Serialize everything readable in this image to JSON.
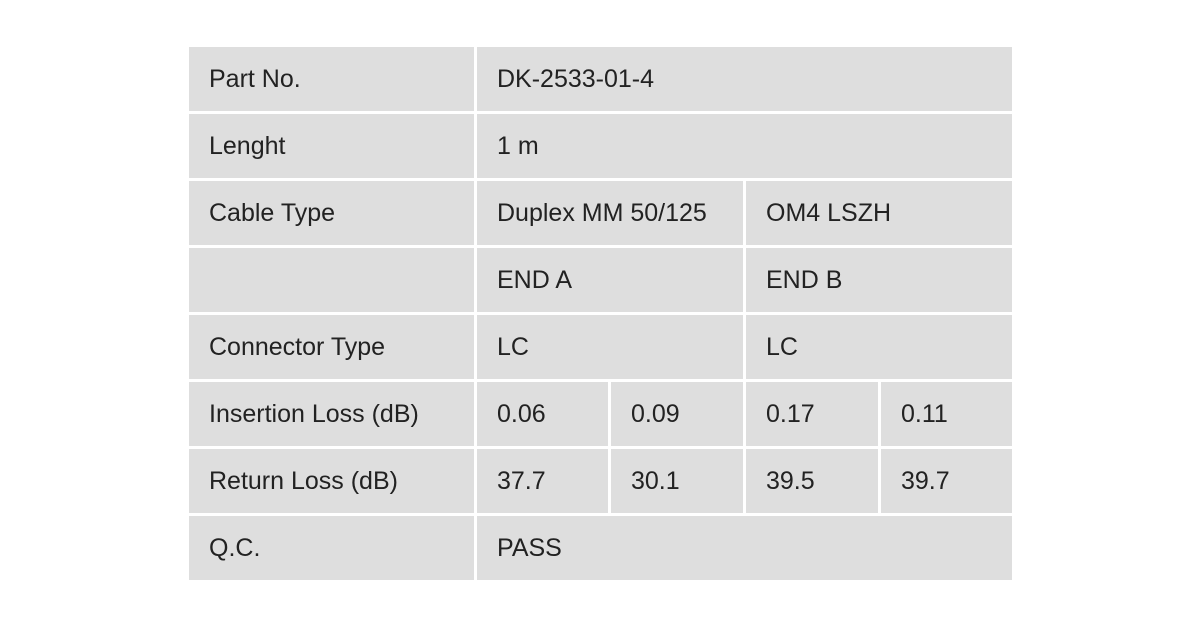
{
  "table": {
    "rows": [
      [
        "Part No.",
        "DK-2533-01-4"
      ],
      [
        "Lenght",
        "1 m"
      ],
      [
        "Cable Type",
        "Duplex MM 50/125",
        "OM4 LSZH"
      ],
      [
        null,
        "END A",
        "END B"
      ],
      [
        "Connector Type",
        "LC",
        "LC"
      ],
      [
        "Insertion Loss (dB)",
        0.06,
        0.09,
        0.17,
        0.11
      ],
      [
        "Return Loss (dB)",
        37.7,
        30.1,
        39.5,
        39.7
      ],
      [
        "Q.C.",
        "PASS"
      ]
    ]
  }
}
